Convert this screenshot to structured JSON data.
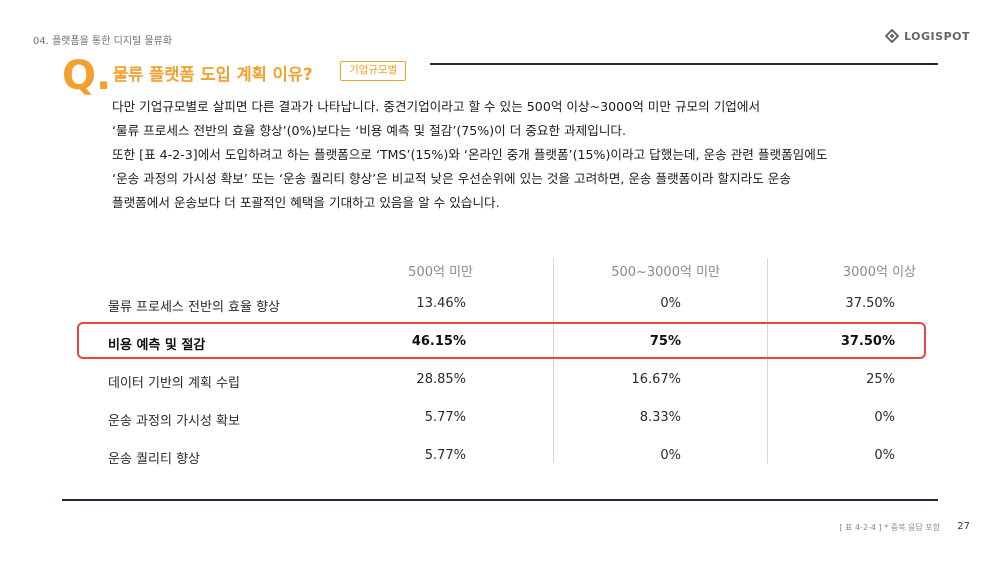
{
  "header": {
    "breadcrumb": "04. 플랫폼을 통한 디지털 물류화",
    "logo_text": "LOGISPOT",
    "logo_icon": "logispot-diamond-icon"
  },
  "question": {
    "mark": "Q.",
    "title": "물류 플랫폼 도입 계획 이유?",
    "badge": "기업규모별"
  },
  "body": {
    "lines": [
      "다만 기업규모별로 살피면 다른 결과가 나타납니다. 중견기업이라고 할 수 있는 500억 이상~3000억 미만 규모의 기업에서",
      "‘물류 프로세스 전반의 효율 향상’(0%)보다는 ‘비용 예측 및 절감’(75%)이 더 중요한 과제입니다.",
      "또한 [표 4-2-3]에서 도입하려고 하는 플랫폼으로 ‘TMS’(15%)와 ‘온라인 중개 플랫폼’(15%)이라고 답했는데, 운송 관련 플랫폼임에도",
      "‘운송 과정의 가시성 확보’ 또는 ‘운송 퀄리티 향상’은 비교적 낮은 우선순위에 있는 것을 고려하면, 운송 플랫폼이라 할지라도 운송",
      "플랫폼에서 운송보다 더 포괄적인 혜택을 기대하고 있음을 알 수 있습니다."
    ]
  },
  "table": {
    "columns": [
      "500억 미만",
      "500~3000억 미만",
      "3000억 이상"
    ],
    "rows": [
      {
        "label": "물류 프로세스 전반의 효율 향상",
        "values": [
          "13.46%",
          "0%",
          "37.50%"
        ]
      },
      {
        "label": "비용 예측 및 절감",
        "values": [
          "46.15%",
          "75%",
          "37.50%"
        ]
      },
      {
        "label": "데이터 기반의 계획 수립",
        "values": [
          "28.85%",
          "16.67%",
          "25%"
        ]
      },
      {
        "label": "운송 과정의 가시성 확보",
        "values": [
          "5.77%",
          "8.33%",
          "0%"
        ]
      },
      {
        "label": "운송 퀄리티 향상",
        "values": [
          "5.77%",
          "0%",
          "0%"
        ]
      }
    ]
  },
  "footer": {
    "note": "[ 표 4-2-4 ] * 중복 응답 포함",
    "page_number": "27"
  },
  "colors": {
    "accent": "#f2a12e",
    "highlight_border": "#e5483f",
    "rule": "#1e2a3a"
  }
}
